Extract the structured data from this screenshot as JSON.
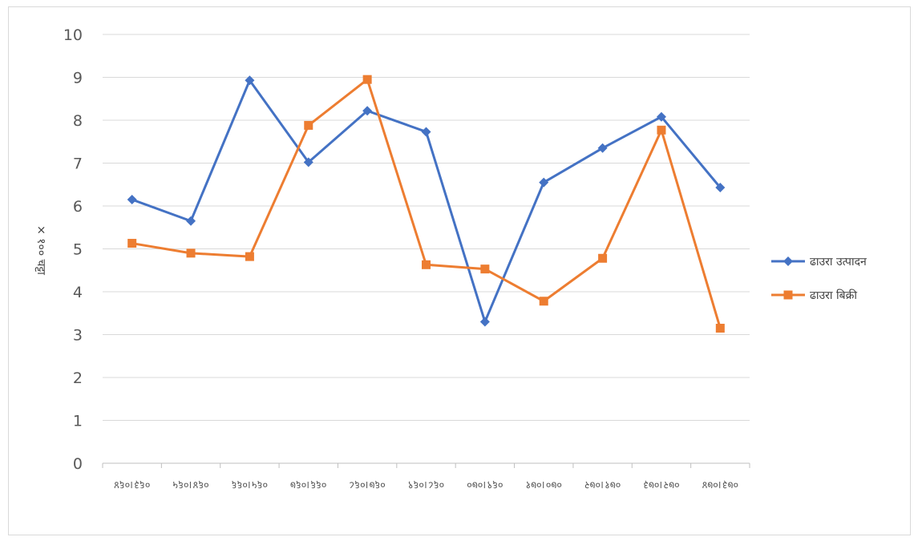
{
  "chart_data": {
    "type": "line",
    "title": "",
    "xlabel": "",
    "ylabel": "× १०० चट्टा",
    "ylim": [
      0,
      10
    ],
    "yticks": [
      0,
      1,
      2,
      3,
      4,
      5,
      6,
      7,
      8,
      9,
      10
    ],
    "grid": true,
    "legend_position": "right",
    "categories": [
      "०६३।०६४",
      "०६४।०६५",
      "०६५।०६६",
      "०६६।०६७",
      "०६७।०६८",
      "०६८।०६९",
      "०६९।०७०",
      "०७०।०७१",
      "०७१।०७२",
      "०७२।०७३",
      "०७३।०७४"
    ],
    "series": [
      {
        "name": "ढाउरा उत्पादन",
        "color": "#4472c4",
        "marker": "diamond",
        "values": [
          6.15,
          5.65,
          8.93,
          7.02,
          8.22,
          7.73,
          3.3,
          6.55,
          7.35,
          8.08,
          6.43
        ]
      },
      {
        "name": "ढाउरा बिक्री",
        "color": "#ed7d31",
        "marker": "square",
        "values": [
          5.13,
          4.9,
          4.82,
          7.88,
          8.95,
          4.63,
          4.53,
          3.78,
          4.78,
          7.77,
          3.15
        ]
      }
    ]
  }
}
